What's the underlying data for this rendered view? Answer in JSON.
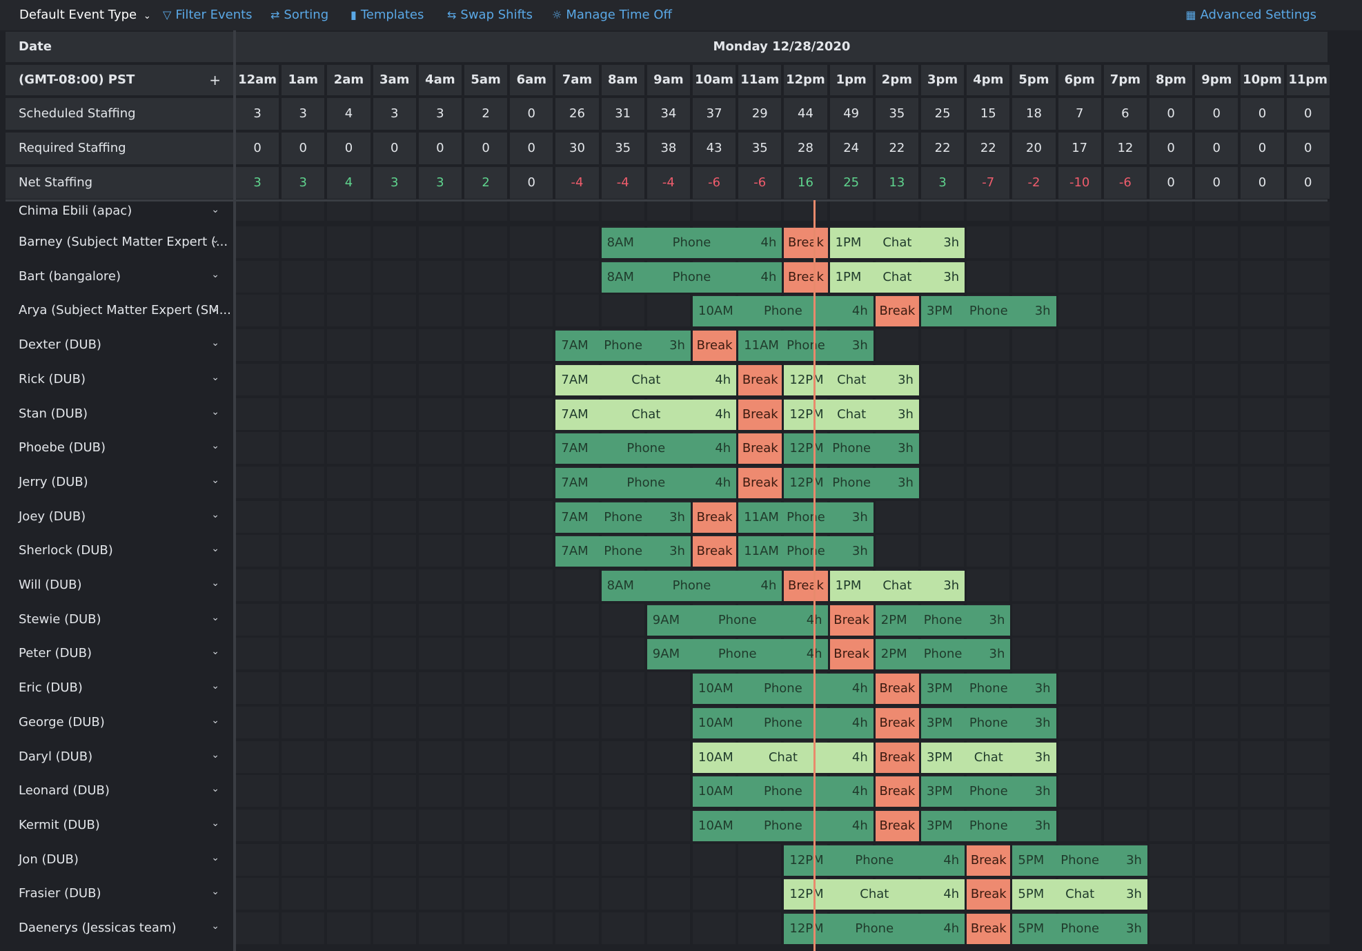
{
  "toolbar": {
    "event_type": "Default Event Type",
    "filter": "Filter Events",
    "sorting": "Sorting",
    "templates": "Templates",
    "swap": "Swap Shifts",
    "time_off": "Manage Time Off",
    "advanced": "Advanced Settings"
  },
  "header": {
    "date_label": "Date",
    "date_value": "Monday 12/28/2020",
    "timezone": "(GMT-08:00) PST",
    "add": "+"
  },
  "hours": [
    "12am",
    "1am",
    "2am",
    "3am",
    "4am",
    "5am",
    "6am",
    "7am",
    "8am",
    "9am",
    "10am",
    "11am",
    "12pm",
    "1pm",
    "2pm",
    "3pm",
    "4pm",
    "5pm",
    "6pm",
    "7pm",
    "8pm",
    "9pm",
    "10pm",
    "11pm"
  ],
  "staffing": [
    {
      "label": "Scheduled Staffing",
      "values": [
        "3",
        "3",
        "4",
        "3",
        "3",
        "2",
        "0",
        "26",
        "31",
        "34",
        "37",
        "29",
        "44",
        "49",
        "35",
        "25",
        "15",
        "18",
        "7",
        "6",
        "0",
        "0",
        "0",
        "0"
      ]
    },
    {
      "label": "Required Staffing",
      "values": [
        "0",
        "0",
        "0",
        "0",
        "0",
        "0",
        "0",
        "30",
        "35",
        "38",
        "43",
        "35",
        "28",
        "24",
        "22",
        "22",
        "22",
        "20",
        "17",
        "12",
        "0",
        "0",
        "0",
        "0"
      ]
    },
    {
      "label": "Net Staffing",
      "values": [
        "3",
        "3",
        "4",
        "3",
        "3",
        "2",
        "0",
        "-4",
        "-4",
        "-4",
        "-6",
        "-6",
        "16",
        "25",
        "13",
        "3",
        "-7",
        "-2",
        "-10",
        "-6",
        "0",
        "0",
        "0",
        "0"
      ]
    }
  ],
  "colors": {
    "phone": "#4f9e76",
    "chat": "#bde3a6",
    "break": "#ee8a70",
    "now_line": "#e88a6c",
    "positive": "#5fd38d",
    "negative": "#ee5c6c",
    "link": "#5aa8e6"
  },
  "agents": [
    {
      "name": "Chima Ebili (apac)",
      "blocks": []
    },
    {
      "name": "Barney (Subject Matter Expert (...",
      "blocks": [
        {
          "h": 8,
          "d": 4,
          "k": "phone",
          "s": "8AM",
          "l": "Phone",
          "dur": "4h"
        },
        {
          "h": 12,
          "d": 1,
          "k": "break",
          "l": "Break"
        },
        {
          "h": 13,
          "d": 3,
          "k": "chat",
          "s": "1PM",
          "l": "Chat",
          "dur": "3h"
        }
      ]
    },
    {
      "name": "Bart (bangalore)",
      "blocks": [
        {
          "h": 8,
          "d": 4,
          "k": "phone",
          "s": "8AM",
          "l": "Phone",
          "dur": "4h"
        },
        {
          "h": 12,
          "d": 1,
          "k": "break",
          "l": "Break"
        },
        {
          "h": 13,
          "d": 3,
          "k": "chat",
          "s": "1PM",
          "l": "Chat",
          "dur": "3h"
        }
      ]
    },
    {
      "name": "Arya (Subject Matter Expert (SM...",
      "blocks": [
        {
          "h": 10,
          "d": 4,
          "k": "phone",
          "s": "10AM",
          "l": "Phone",
          "dur": "4h"
        },
        {
          "h": 14,
          "d": 1,
          "k": "break",
          "l": "Break"
        },
        {
          "h": 15,
          "d": 3,
          "k": "phone",
          "s": "3PM",
          "l": "Phone",
          "dur": "3h"
        }
      ]
    },
    {
      "name": "Dexter (DUB)",
      "blocks": [
        {
          "h": 7,
          "d": 3,
          "k": "phone",
          "s": "7AM",
          "l": "Phone",
          "dur": "3h"
        },
        {
          "h": 10,
          "d": 1,
          "k": "break",
          "l": "Break"
        },
        {
          "h": 11,
          "d": 3,
          "k": "phone",
          "s": "11AM",
          "l": "Phone",
          "dur": "3h"
        }
      ]
    },
    {
      "name": "Rick (DUB)",
      "blocks": [
        {
          "h": 7,
          "d": 4,
          "k": "chat",
          "s": "7AM",
          "l": "Chat",
          "dur": "4h"
        },
        {
          "h": 11,
          "d": 1,
          "k": "break",
          "l": "Break"
        },
        {
          "h": 12,
          "d": 3,
          "k": "chat",
          "s": "12PM",
          "l": "Chat",
          "dur": "3h"
        }
      ]
    },
    {
      "name": "Stan (DUB)",
      "blocks": [
        {
          "h": 7,
          "d": 4,
          "k": "chat",
          "s": "7AM",
          "l": "Chat",
          "dur": "4h"
        },
        {
          "h": 11,
          "d": 1,
          "k": "break",
          "l": "Break"
        },
        {
          "h": 12,
          "d": 3,
          "k": "chat",
          "s": "12PM",
          "l": "Chat",
          "dur": "3h"
        }
      ]
    },
    {
      "name": "Phoebe (DUB)",
      "blocks": [
        {
          "h": 7,
          "d": 4,
          "k": "phone",
          "s": "7AM",
          "l": "Phone",
          "dur": "4h"
        },
        {
          "h": 11,
          "d": 1,
          "k": "break",
          "l": "Break"
        },
        {
          "h": 12,
          "d": 3,
          "k": "phone",
          "s": "12PM",
          "l": "Phone",
          "dur": "3h"
        }
      ]
    },
    {
      "name": "Jerry (DUB)",
      "blocks": [
        {
          "h": 7,
          "d": 4,
          "k": "phone",
          "s": "7AM",
          "l": "Phone",
          "dur": "4h"
        },
        {
          "h": 11,
          "d": 1,
          "k": "break",
          "l": "Break"
        },
        {
          "h": 12,
          "d": 3,
          "k": "phone",
          "s": "12PM",
          "l": "Phone",
          "dur": "3h"
        }
      ]
    },
    {
      "name": "Joey (DUB)",
      "blocks": [
        {
          "h": 7,
          "d": 3,
          "k": "phone",
          "s": "7AM",
          "l": "Phone",
          "dur": "3h"
        },
        {
          "h": 10,
          "d": 1,
          "k": "break",
          "l": "Break"
        },
        {
          "h": 11,
          "d": 3,
          "k": "phone",
          "s": "11AM",
          "l": "Phone",
          "dur": "3h"
        }
      ]
    },
    {
      "name": "Sherlock (DUB)",
      "blocks": [
        {
          "h": 7,
          "d": 3,
          "k": "phone",
          "s": "7AM",
          "l": "Phone",
          "dur": "3h"
        },
        {
          "h": 10,
          "d": 1,
          "k": "break",
          "l": "Break"
        },
        {
          "h": 11,
          "d": 3,
          "k": "phone",
          "s": "11AM",
          "l": "Phone",
          "dur": "3h"
        }
      ]
    },
    {
      "name": "Will (DUB)",
      "blocks": [
        {
          "h": 8,
          "d": 4,
          "k": "phone",
          "s": "8AM",
          "l": "Phone",
          "dur": "4h"
        },
        {
          "h": 12,
          "d": 1,
          "k": "break",
          "l": "Break"
        },
        {
          "h": 13,
          "d": 3,
          "k": "chat",
          "s": "1PM",
          "l": "Chat",
          "dur": "3h"
        }
      ]
    },
    {
      "name": "Stewie (DUB)",
      "blocks": [
        {
          "h": 9,
          "d": 4,
          "k": "phone",
          "s": "9AM",
          "l": "Phone",
          "dur": "4h"
        },
        {
          "h": 13,
          "d": 1,
          "k": "break",
          "l": "Break"
        },
        {
          "h": 14,
          "d": 3,
          "k": "phone",
          "s": "2PM",
          "l": "Phone",
          "dur": "3h"
        }
      ]
    },
    {
      "name": "Peter (DUB)",
      "blocks": [
        {
          "h": 9,
          "d": 4,
          "k": "phone",
          "s": "9AM",
          "l": "Phone",
          "dur": "4h"
        },
        {
          "h": 13,
          "d": 1,
          "k": "break",
          "l": "Break"
        },
        {
          "h": 14,
          "d": 3,
          "k": "phone",
          "s": "2PM",
          "l": "Phone",
          "dur": "3h"
        }
      ]
    },
    {
      "name": "Eric (DUB)",
      "blocks": [
        {
          "h": 10,
          "d": 4,
          "k": "phone",
          "s": "10AM",
          "l": "Phone",
          "dur": "4h"
        },
        {
          "h": 14,
          "d": 1,
          "k": "break",
          "l": "Break"
        },
        {
          "h": 15,
          "d": 3,
          "k": "phone",
          "s": "3PM",
          "l": "Phone",
          "dur": "3h"
        }
      ]
    },
    {
      "name": "George (DUB)",
      "blocks": [
        {
          "h": 10,
          "d": 4,
          "k": "phone",
          "s": "10AM",
          "l": "Phone",
          "dur": "4h"
        },
        {
          "h": 14,
          "d": 1,
          "k": "break",
          "l": "Break"
        },
        {
          "h": 15,
          "d": 3,
          "k": "phone",
          "s": "3PM",
          "l": "Phone",
          "dur": "3h"
        }
      ]
    },
    {
      "name": "Daryl (DUB)",
      "blocks": [
        {
          "h": 10,
          "d": 4,
          "k": "chat",
          "s": "10AM",
          "l": "Chat",
          "dur": "4h"
        },
        {
          "h": 14,
          "d": 1,
          "k": "break",
          "l": "Break"
        },
        {
          "h": 15,
          "d": 3,
          "k": "chat",
          "s": "3PM",
          "l": "Chat",
          "dur": "3h"
        }
      ]
    },
    {
      "name": "Leonard (DUB)",
      "blocks": [
        {
          "h": 10,
          "d": 4,
          "k": "phone",
          "s": "10AM",
          "l": "Phone",
          "dur": "4h"
        },
        {
          "h": 14,
          "d": 1,
          "k": "break",
          "l": "Break"
        },
        {
          "h": 15,
          "d": 3,
          "k": "phone",
          "s": "3PM",
          "l": "Phone",
          "dur": "3h"
        }
      ]
    },
    {
      "name": "Kermit (DUB)",
      "blocks": [
        {
          "h": 10,
          "d": 4,
          "k": "phone",
          "s": "10AM",
          "l": "Phone",
          "dur": "4h"
        },
        {
          "h": 14,
          "d": 1,
          "k": "break",
          "l": "Break"
        },
        {
          "h": 15,
          "d": 3,
          "k": "phone",
          "s": "3PM",
          "l": "Phone",
          "dur": "3h"
        }
      ]
    },
    {
      "name": "Jon (DUB)",
      "blocks": [
        {
          "h": 12,
          "d": 4,
          "k": "phone",
          "s": "12PM",
          "l": "Phone",
          "dur": "4h"
        },
        {
          "h": 16,
          "d": 1,
          "k": "break",
          "l": "Break"
        },
        {
          "h": 17,
          "d": 3,
          "k": "phone",
          "s": "5PM",
          "l": "Phone",
          "dur": "3h"
        }
      ]
    },
    {
      "name": "Frasier (DUB)",
      "blocks": [
        {
          "h": 12,
          "d": 4,
          "k": "chat",
          "s": "12PM",
          "l": "Chat",
          "dur": "4h"
        },
        {
          "h": 16,
          "d": 1,
          "k": "break",
          "l": "Break"
        },
        {
          "h": 17,
          "d": 3,
          "k": "chat",
          "s": "5PM",
          "l": "Chat",
          "dur": "3h"
        }
      ]
    },
    {
      "name": "Daenerys (Jessicas team)",
      "blocks": [
        {
          "h": 12,
          "d": 4,
          "k": "phone",
          "s": "12PM",
          "l": "Phone",
          "dur": "4h"
        },
        {
          "h": 16,
          "d": 1,
          "k": "break",
          "l": "Break"
        },
        {
          "h": 17,
          "d": 3,
          "k": "phone",
          "s": "5PM",
          "l": "Phone",
          "dur": "3h"
        }
      ]
    }
  ]
}
